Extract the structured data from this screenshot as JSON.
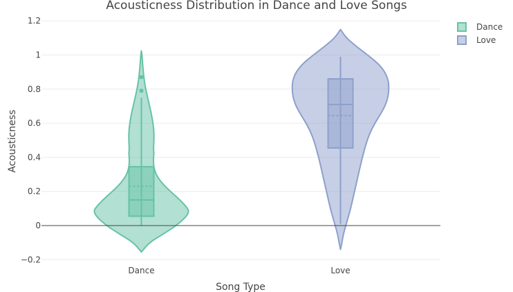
{
  "chart_data": {
    "type": "violin",
    "title": "Acousticness Distribution in Dance and Love Songs",
    "xlabel": "Song Type",
    "ylabel": "Acousticness",
    "categories": [
      "Dance",
      "Love"
    ],
    "ylim": [
      -0.22,
      1.2
    ],
    "y_ticks": [
      -0.2,
      0,
      0.2,
      0.4,
      0.6,
      0.8,
      1,
      1.2
    ],
    "y_tick_labels": [
      "−0.2",
      "0",
      "0.2",
      "0.4",
      "0.6",
      "0.8",
      "1",
      "1.2"
    ],
    "legend_position": "top-right",
    "grid": true,
    "series": [
      {
        "name": "Dance",
        "color": "#66c2a5",
        "fill": "rgba(102,194,165,0.5)",
        "box_fill": "rgba(102,194,165,0.5)",
        "kde_y": [
          -0.155,
          -0.1,
          -0.05,
          0,
          0.05,
          0.08,
          0.1,
          0.15,
          0.2,
          0.25,
          0.3,
          0.35,
          0.4,
          0.42,
          0.45,
          0.5,
          0.55,
          0.6,
          0.65,
          0.7,
          0.75,
          0.8,
          0.85,
          0.9,
          0.95,
          1.0,
          1.025
        ],
        "kde_density": [
          0.0,
          0.16,
          0.45,
          0.72,
          0.92,
          0.98,
          0.96,
          0.8,
          0.6,
          0.42,
          0.3,
          0.25,
          0.25,
          0.26,
          0.25,
          0.26,
          0.26,
          0.24,
          0.21,
          0.17,
          0.13,
          0.09,
          0.06,
          0.04,
          0.025,
          0.012,
          0.0
        ],
        "q1": 0.055,
        "median": 0.15,
        "q3": 0.345,
        "mean": 0.23,
        "whisker_low": 0.0,
        "whisker_high": 0.75,
        "outliers": [
          0.79,
          0.87
        ]
      },
      {
        "name": "Love",
        "color": "#8da0cb",
        "fill": "rgba(141,160,203,0.5)",
        "box_fill": "rgba(141,160,203,0.5)",
        "kde_y": [
          -0.14,
          -0.1,
          -0.05,
          0,
          0.05,
          0.1,
          0.2,
          0.3,
          0.4,
          0.5,
          0.55,
          0.6,
          0.65,
          0.7,
          0.75,
          0.8,
          0.85,
          0.9,
          0.95,
          1.0,
          1.05,
          1.1,
          1.15
        ],
        "kde_density": [
          0.0,
          0.03,
          0.06,
          0.11,
          0.16,
          0.21,
          0.29,
          0.37,
          0.45,
          0.55,
          0.62,
          0.71,
          0.82,
          0.92,
          0.98,
          1.0,
          0.99,
          0.92,
          0.78,
          0.56,
          0.33,
          0.12,
          0.0
        ],
        "q1": 0.455,
        "median": 0.71,
        "q3": 0.86,
        "mean": 0.645,
        "whisker_low": 0.01,
        "whisker_high": 0.99,
        "outliers": []
      }
    ]
  }
}
